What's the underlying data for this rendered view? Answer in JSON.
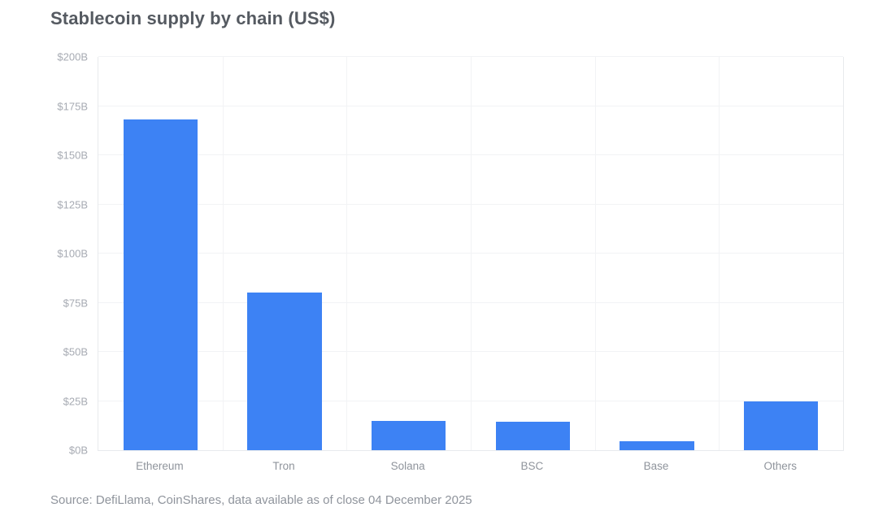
{
  "chart_data": {
    "type": "bar",
    "title": "Stablecoin supply by chain (US$)",
    "categories": [
      "Ethereum",
      "Tron",
      "Solana",
      "BSC",
      "Base",
      "Others"
    ],
    "values": [
      168,
      80,
      15,
      14.5,
      4.5,
      25
    ],
    "xlabel": "",
    "ylabel": "",
    "ylim": [
      0,
      200
    ],
    "ytick_step": 25,
    "ytick_labels": [
      "$0B",
      "$25B",
      "$50B",
      "$75B",
      "$100B",
      "$125B",
      "$150B",
      "$175B",
      "$200B"
    ],
    "grid": true,
    "legend": false
  },
  "source": {
    "text": "Source: DefiLlama, CoinShares, data available as of close 04 December 2025"
  },
  "colors": {
    "bar": "#3D82F4",
    "title_text": "#555A61",
    "ytick_text": "#A7ABB3",
    "xtick_text": "#8F949C",
    "source_text": "#8F949C",
    "gridline": "#F2F3F5",
    "plot_border": "#E8EAED",
    "background": "#FFFFFF"
  }
}
